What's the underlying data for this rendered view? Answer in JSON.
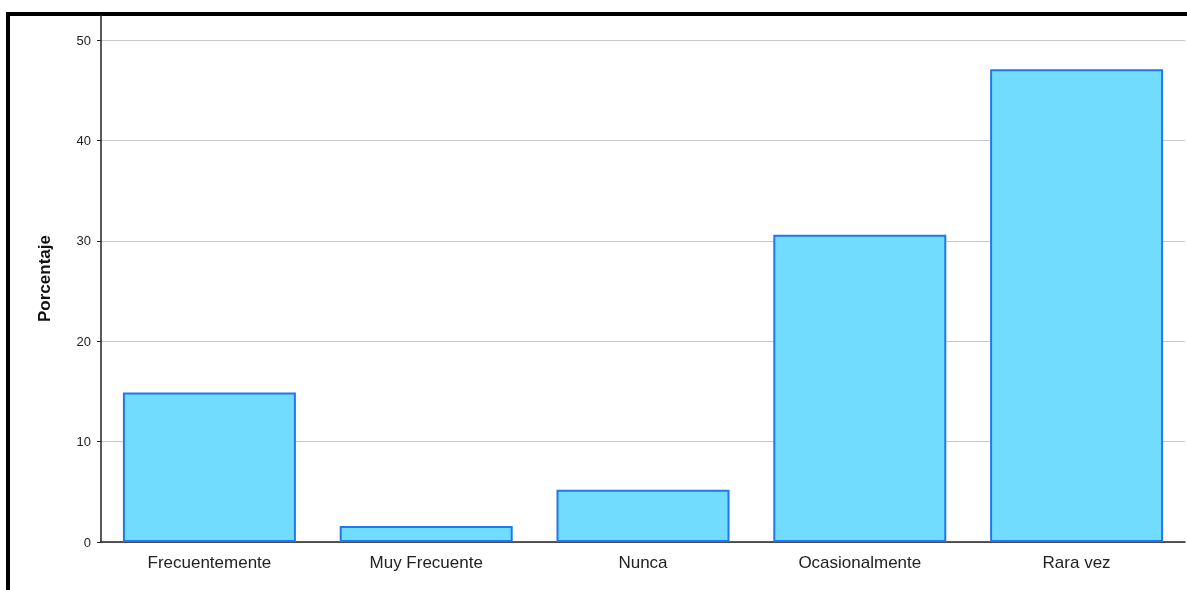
{
  "chart_data": {
    "type": "bar",
    "ylabel": "Porcentaje",
    "categories": [
      "Frecuentemente",
      "Muy Frecuente",
      "Nunca",
      "Ocasionalmente",
      "Rara vez"
    ],
    "values": [
      14.9,
      1.6,
      5.2,
      30.6,
      47.1
    ],
    "color": "#72dcff",
    "ylim": [
      0,
      52.5
    ],
    "yticks": [
      0,
      10,
      20,
      30,
      40,
      50
    ],
    "grid": "y"
  }
}
